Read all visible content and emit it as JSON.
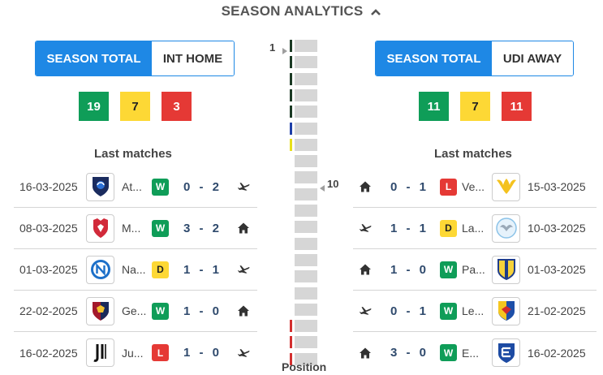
{
  "header": {
    "title": "SEASON ANALYTICS",
    "toggle_icon": "chevron-up-icon"
  },
  "home": {
    "tabs": [
      {
        "label": "SEASON TOTAL",
        "active": true
      },
      {
        "label": "INT HOME",
        "active": false
      }
    ],
    "stats": {
      "wins": "19",
      "draws": "7",
      "losses": "3"
    },
    "last_matches_title": "Last matches",
    "matches": [
      {
        "date": "16-03-2025",
        "team": "At...",
        "crest": "atalanta-crest",
        "result": "W",
        "score": "0 - 2",
        "venue": "away",
        "venue_icon": "plane-icon"
      },
      {
        "date": "08-03-2025",
        "team": "M...",
        "crest": "monza-crest",
        "result": "W",
        "score": "3 - 2",
        "venue": "home",
        "venue_icon": "home-icon"
      },
      {
        "date": "01-03-2025",
        "team": "Na...",
        "crest": "napoli-crest",
        "result": "D",
        "score": "1 - 1",
        "venue": "away",
        "venue_icon": "plane-icon"
      },
      {
        "date": "22-02-2025",
        "team": "Ge...",
        "crest": "genoa-crest",
        "result": "W",
        "score": "1 - 0",
        "venue": "home",
        "venue_icon": "home-icon"
      },
      {
        "date": "16-02-2025",
        "team": "Ju...",
        "crest": "juventus-crest",
        "result": "L",
        "score": "1 - 0",
        "venue": "away",
        "venue_icon": "plane-icon"
      }
    ]
  },
  "away": {
    "tabs": [
      {
        "label": "SEASON TOTAL",
        "active": true
      },
      {
        "label": "UDI AWAY",
        "active": false
      }
    ],
    "stats": {
      "wins": "11",
      "draws": "7",
      "losses": "11"
    },
    "last_matches_title": "Last matches",
    "matches": [
      {
        "venue": "home",
        "venue_icon": "home-icon",
        "score": "0 - 1",
        "result": "L",
        "team": "Ve...",
        "crest": "venezia-crest",
        "date": "15-03-2025"
      },
      {
        "venue": "away",
        "venue_icon": "plane-icon",
        "score": "1 - 1",
        "result": "D",
        "team": "La...",
        "crest": "lazio-crest",
        "date": "10-03-2025"
      },
      {
        "venue": "home",
        "venue_icon": "home-icon",
        "score": "1 - 0",
        "result": "W",
        "team": "Pa...",
        "crest": "parma-crest",
        "date": "01-03-2025"
      },
      {
        "venue": "away",
        "venue_icon": "plane-icon",
        "score": "0 - 1",
        "result": "W",
        "team": "Le...",
        "crest": "lecce-crest",
        "date": "21-02-2025"
      },
      {
        "venue": "home",
        "venue_icon": "home-icon",
        "score": "3 - 0",
        "result": "W",
        "team": "E...",
        "crest": "empoli-crest",
        "date": "16-02-2025"
      }
    ]
  },
  "position": {
    "label": "Position",
    "top_marker": "1",
    "highlight_marker": "10",
    "total_positions": 20,
    "highlight_position": 10,
    "zone_colors": [
      "#1b3a24",
      "#1b3a24",
      "#1b3a24",
      "#1b3a24",
      "#1b3a24",
      "#1e3fa8",
      "#e8e01a",
      "",
      "",
      "",
      "",
      "",
      "",
      "",
      "",
      "",
      "",
      "#d32f2f",
      "#d32f2f",
      "#d32f2f"
    ]
  },
  "colors": {
    "accent": "#1e88e5",
    "win": "#0f9d58",
    "draw": "#fdd835",
    "loss": "#e53935"
  }
}
